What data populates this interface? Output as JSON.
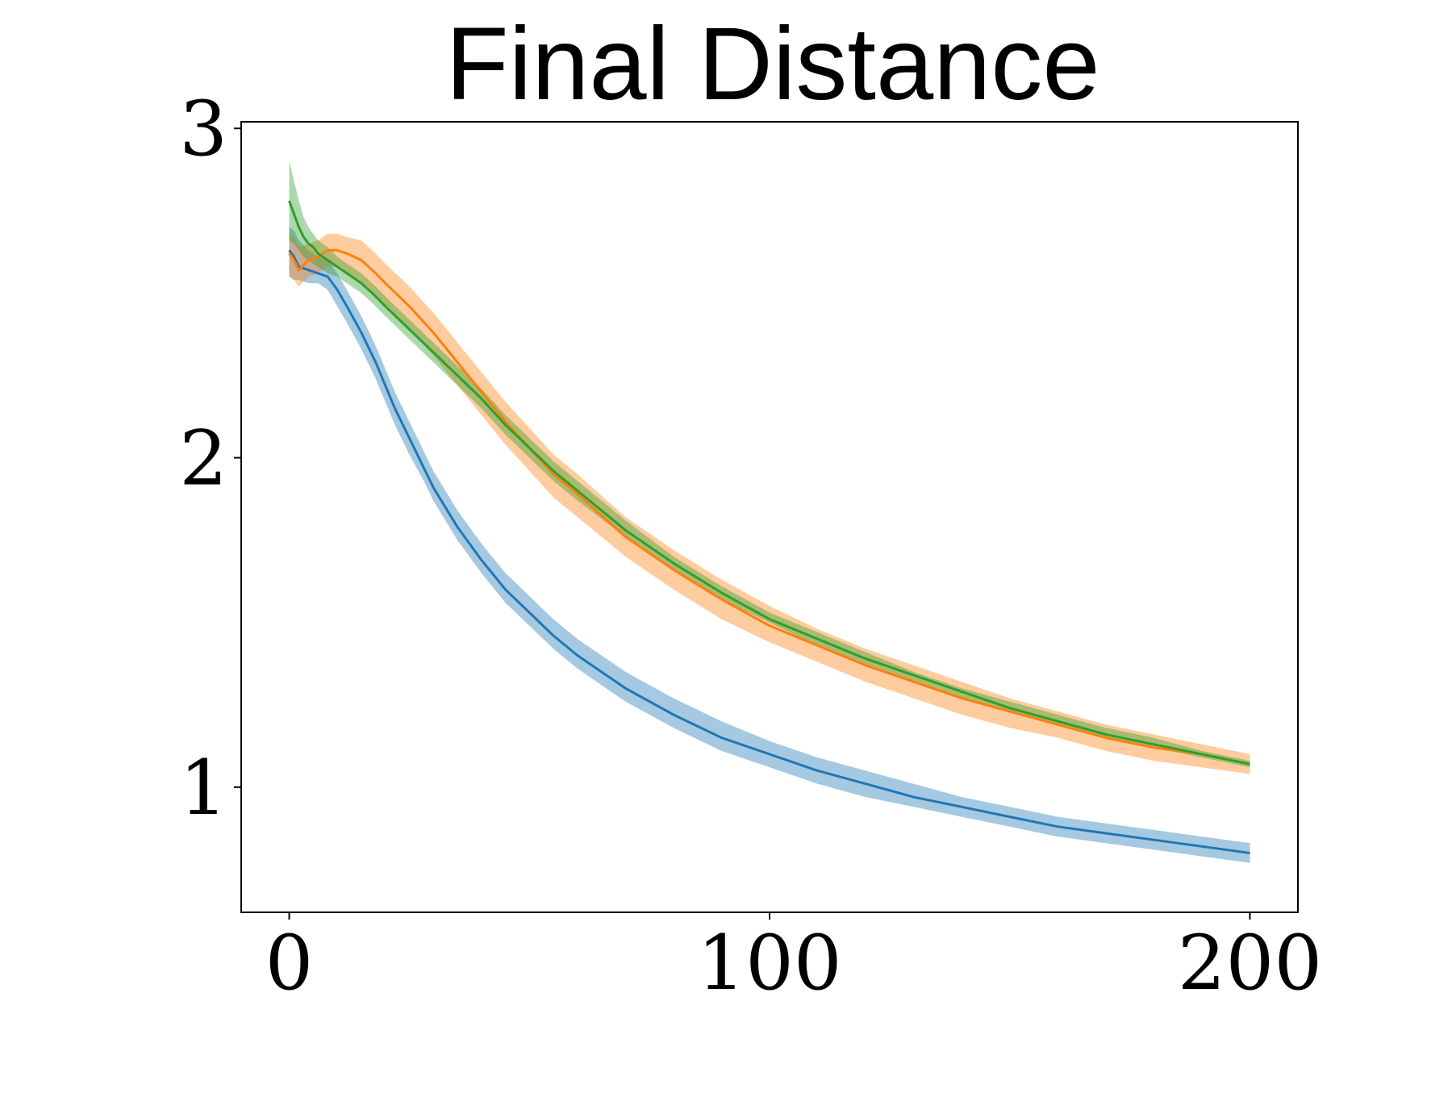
{
  "chart_data": {
    "type": "line",
    "title": "Final Distance",
    "xlabel": "",
    "ylabel": "",
    "xlim": [
      -10,
      210
    ],
    "ylim": [
      0.62,
      3.02
    ],
    "xticks": [
      0,
      100,
      200
    ],
    "xtick_labels": [
      "0",
      "100",
      "200"
    ],
    "yticks": [
      1,
      2,
      3
    ],
    "ytick_labels": [
      "1",
      "2",
      "3"
    ],
    "grid": false,
    "legend": "none",
    "series": [
      {
        "color": "#1f77b4",
        "band_color": "#1f77b4",
        "x": [
          0,
          1,
          2,
          4,
          6,
          8,
          10,
          12,
          15,
          18,
          20,
          22,
          25,
          28,
          30,
          35,
          40,
          45,
          50,
          55,
          60,
          70,
          80,
          90,
          100,
          110,
          120,
          130,
          140,
          150,
          160,
          170,
          180,
          190,
          200
        ],
        "y": [
          2.63,
          2.61,
          2.58,
          2.57,
          2.56,
          2.55,
          2.51,
          2.46,
          2.38,
          2.29,
          2.22,
          2.15,
          2.06,
          1.97,
          1.91,
          1.79,
          1.69,
          1.6,
          1.53,
          1.46,
          1.4,
          1.3,
          1.22,
          1.15,
          1.1,
          1.05,
          1.01,
          0.97,
          0.94,
          0.91,
          0.88,
          0.86,
          0.84,
          0.82,
          0.8
        ],
        "lower": [
          2.55,
          2.54,
          2.54,
          2.53,
          2.53,
          2.51,
          2.46,
          2.41,
          2.33,
          2.24,
          2.17,
          2.1,
          2.01,
          1.93,
          1.87,
          1.75,
          1.65,
          1.56,
          1.49,
          1.42,
          1.36,
          1.26,
          1.18,
          1.11,
          1.06,
          1.01,
          0.97,
          0.94,
          0.91,
          0.88,
          0.85,
          0.83,
          0.81,
          0.79,
          0.77
        ],
        "upper": [
          2.7,
          2.69,
          2.66,
          2.63,
          2.61,
          2.6,
          2.56,
          2.51,
          2.43,
          2.34,
          2.27,
          2.2,
          2.11,
          2.02,
          1.96,
          1.84,
          1.74,
          1.65,
          1.58,
          1.51,
          1.45,
          1.35,
          1.27,
          1.2,
          1.14,
          1.09,
          1.05,
          1.01,
          0.97,
          0.94,
          0.91,
          0.89,
          0.87,
          0.85,
          0.83
        ]
      },
      {
        "color": "#ff7f0e",
        "band_color": "#ff7f0e",
        "x": [
          0,
          1,
          2,
          4,
          6,
          8,
          10,
          12,
          15,
          18,
          20,
          25,
          30,
          35,
          40,
          45,
          50,
          55,
          60,
          70,
          80,
          90,
          100,
          110,
          120,
          130,
          140,
          150,
          160,
          170,
          180,
          190,
          200
        ],
        "y": [
          2.62,
          2.6,
          2.57,
          2.6,
          2.61,
          2.63,
          2.63,
          2.62,
          2.6,
          2.56,
          2.53,
          2.46,
          2.38,
          2.29,
          2.2,
          2.11,
          2.03,
          1.95,
          1.89,
          1.76,
          1.66,
          1.57,
          1.49,
          1.43,
          1.37,
          1.32,
          1.27,
          1.23,
          1.19,
          1.15,
          1.12,
          1.1,
          1.07
        ],
        "lower": [
          2.55,
          2.54,
          2.52,
          2.55,
          2.56,
          2.58,
          2.58,
          2.56,
          2.53,
          2.49,
          2.46,
          2.39,
          2.31,
          2.22,
          2.13,
          2.04,
          1.96,
          1.88,
          1.82,
          1.7,
          1.6,
          1.51,
          1.44,
          1.38,
          1.32,
          1.27,
          1.22,
          1.18,
          1.15,
          1.11,
          1.08,
          1.06,
          1.04
        ],
        "upper": [
          2.68,
          2.67,
          2.64,
          2.65,
          2.66,
          2.68,
          2.68,
          2.67,
          2.66,
          2.62,
          2.59,
          2.52,
          2.44,
          2.35,
          2.26,
          2.17,
          2.09,
          2.01,
          1.95,
          1.82,
          1.72,
          1.63,
          1.55,
          1.48,
          1.42,
          1.37,
          1.32,
          1.27,
          1.23,
          1.19,
          1.16,
          1.13,
          1.1
        ]
      },
      {
        "color": "#2ca02c",
        "band_color": "#2ca02c",
        "x": [
          0,
          1,
          2,
          3,
          4,
          5,
          6,
          8,
          10,
          12,
          15,
          18,
          20,
          25,
          30,
          35,
          40,
          45,
          50,
          55,
          60,
          70,
          80,
          90,
          100,
          110,
          120,
          130,
          140,
          150,
          160,
          170,
          180,
          190,
          200
        ],
        "y": [
          2.78,
          2.74,
          2.7,
          2.67,
          2.65,
          2.64,
          2.62,
          2.6,
          2.58,
          2.56,
          2.53,
          2.49,
          2.46,
          2.39,
          2.32,
          2.25,
          2.18,
          2.1,
          2.03,
          1.96,
          1.9,
          1.78,
          1.68,
          1.59,
          1.51,
          1.45,
          1.39,
          1.34,
          1.29,
          1.24,
          1.2,
          1.16,
          1.13,
          1.1,
          1.07
        ],
        "lower": [
          2.66,
          2.65,
          2.63,
          2.61,
          2.6,
          2.59,
          2.58,
          2.56,
          2.55,
          2.53,
          2.5,
          2.46,
          2.43,
          2.36,
          2.29,
          2.22,
          2.15,
          2.07,
          2.0,
          1.93,
          1.87,
          1.76,
          1.66,
          1.57,
          1.5,
          1.43,
          1.37,
          1.32,
          1.27,
          1.23,
          1.19,
          1.15,
          1.12,
          1.09,
          1.06
        ],
        "upper": [
          2.9,
          2.84,
          2.78,
          2.73,
          2.7,
          2.68,
          2.66,
          2.64,
          2.61,
          2.59,
          2.56,
          2.52,
          2.49,
          2.42,
          2.35,
          2.28,
          2.21,
          2.13,
          2.06,
          1.99,
          1.93,
          1.81,
          1.7,
          1.61,
          1.53,
          1.47,
          1.41,
          1.35,
          1.3,
          1.26,
          1.22,
          1.18,
          1.15,
          1.11,
          1.08
        ]
      }
    ]
  }
}
